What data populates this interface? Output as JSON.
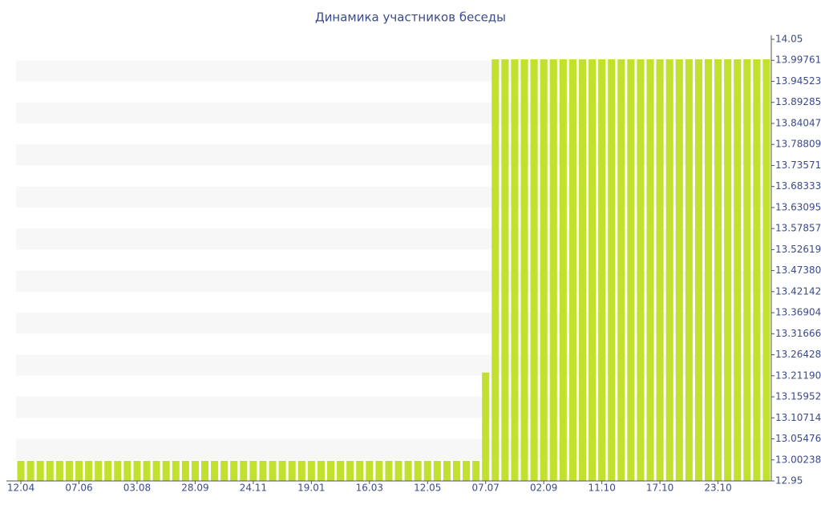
{
  "chart_data": {
    "type": "bar",
    "title": "Динамика участников беседы",
    "categories": [
      "12.04",
      null,
      null,
      null,
      null,
      null,
      "07.06",
      null,
      null,
      null,
      null,
      null,
      "03.08",
      null,
      null,
      null,
      null,
      null,
      "28.09",
      null,
      null,
      null,
      null,
      null,
      "24.11",
      null,
      null,
      null,
      null,
      null,
      "19.01",
      null,
      null,
      null,
      null,
      null,
      "16.03",
      null,
      null,
      null,
      null,
      null,
      "12.05",
      null,
      null,
      null,
      null,
      null,
      "07.07",
      null,
      null,
      null,
      null,
      null,
      "02.09",
      null,
      null,
      null,
      null,
      null,
      "11.10",
      null,
      null,
      null,
      null,
      null,
      "17.10",
      null,
      null,
      null,
      null,
      null,
      "23.10",
      null,
      null,
      null,
      null,
      null
    ],
    "values": [
      13,
      13,
      13,
      13,
      13,
      13,
      13,
      13,
      13,
      13,
      13,
      13,
      13,
      13,
      13,
      13,
      13,
      13,
      13,
      13,
      13,
      13,
      13,
      13,
      13,
      13,
      13,
      13,
      13,
      13,
      13,
      13,
      13,
      13,
      13,
      13,
      13,
      13,
      13,
      13,
      13,
      13,
      13,
      13,
      13,
      13,
      13,
      13,
      13.22,
      14,
      14,
      14,
      14,
      14,
      14,
      14,
      14,
      14,
      14,
      14,
      14,
      14,
      14,
      14,
      14,
      14,
      14,
      14,
      14,
      14,
      14,
      14,
      14,
      14,
      14,
      14,
      14,
      14
    ],
    "color": "#c2e02e",
    "ylim": [
      12.95,
      14.05
    ],
    "yticks": [
      12.95,
      13.0023809524,
      13.0547619048,
      13.1071428571,
      13.1595238095,
      13.2119047619,
      13.2642857143,
      13.3166666667,
      13.369047619,
      13.4214285714,
      13.4738095238,
      13.5261904762,
      13.5785714286,
      13.630952381,
      13.6833333333,
      13.7357142857,
      13.7880952381,
      13.8404761905,
      13.8928571429,
      13.9452380952,
      13.9976190476,
      14.05
    ],
    "grid": true
  }
}
